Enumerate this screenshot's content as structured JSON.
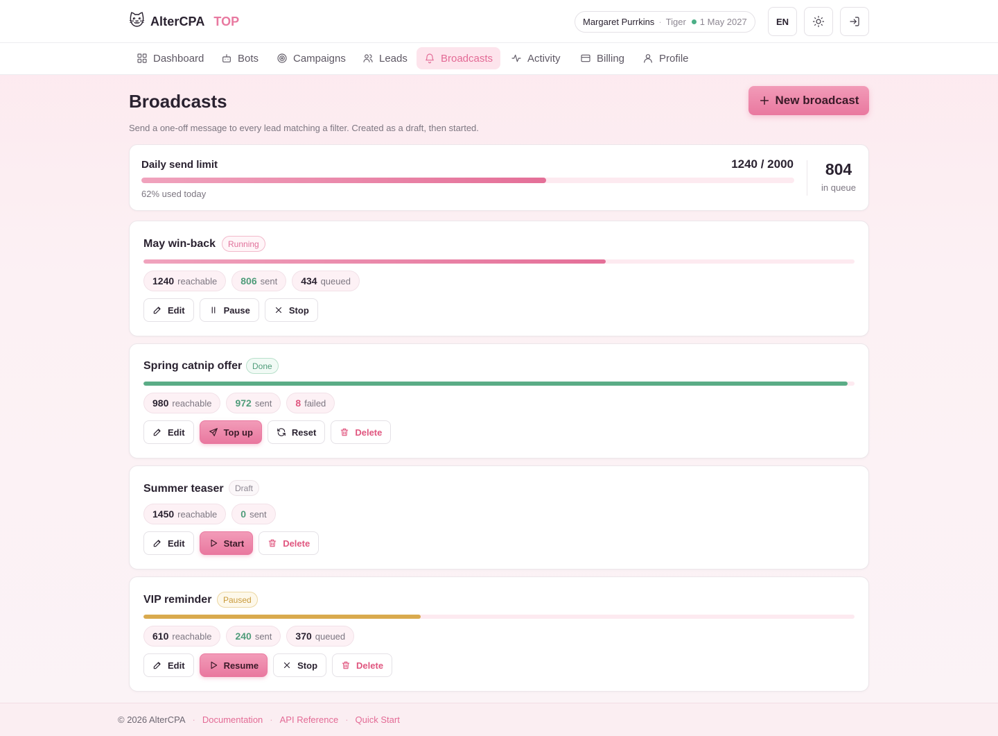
{
  "header": {
    "brand_emoji": "🐱",
    "brand_name": "AlterCPA",
    "brand_accent": "TOP",
    "user_name": "Margaret Purrkins",
    "user_role": "Tiger",
    "user_date": "1 May 2027",
    "language": "EN",
    "theme_icon": "sun-icon",
    "logout_icon": "logout-icon"
  },
  "nav": {
    "items": [
      {
        "label": "Dashboard",
        "icon": "grid-icon",
        "active": false
      },
      {
        "label": "Bots",
        "icon": "bot-icon",
        "active": false
      },
      {
        "label": "Campaigns",
        "icon": "target-icon",
        "active": false
      },
      {
        "label": "Leads",
        "icon": "users-icon",
        "active": false
      },
      {
        "label": "Broadcasts",
        "icon": "bell-icon",
        "active": true
      },
      {
        "label": "Activity",
        "icon": "pulse-icon",
        "active": false
      },
      {
        "label": "Billing",
        "icon": "card-icon",
        "active": false
      },
      {
        "label": "Profile",
        "icon": "user-icon",
        "active": false
      }
    ]
  },
  "page": {
    "title": "Broadcasts",
    "subtitle": "Send a one-off message to every lead matching a filter. Created as a draft, then started.",
    "new_button": "New broadcast"
  },
  "limit": {
    "label": "Daily send limit",
    "value": "1240 / 2000",
    "used_fraction": 0.62,
    "note": "62% used today",
    "queue_count": "804",
    "queue_label": "in queue"
  },
  "broadcasts": [
    {
      "title": "May win-back",
      "status": "Running",
      "progress": 0.65,
      "stats": [
        {
          "n": "1240",
          "label": "reachable"
        },
        {
          "n": "806",
          "label": "sent"
        },
        {
          "n": "434",
          "label": "queued"
        }
      ],
      "actions": [
        "Edit",
        "Pause",
        "Stop"
      ]
    },
    {
      "title": "Spring catnip offer",
      "status": "Done",
      "progress": 0.99,
      "stats": [
        {
          "n": "980",
          "label": "reachable"
        },
        {
          "n": "972",
          "label": "sent"
        },
        {
          "n": "8",
          "label": "failed"
        }
      ],
      "actions": [
        "Edit",
        "Top up",
        "Reset",
        "Delete"
      ]
    },
    {
      "title": "Summer teaser",
      "status": "Draft",
      "stats": [
        {
          "n": "1450",
          "label": "reachable"
        },
        {
          "n": "0",
          "label": "sent"
        }
      ],
      "actions": [
        "Edit",
        "Start",
        "Delete"
      ]
    },
    {
      "title": "VIP reminder",
      "status": "Paused",
      "progress": 0.39,
      "stats": [
        {
          "n": "610",
          "label": "reachable"
        },
        {
          "n": "240",
          "label": "sent"
        },
        {
          "n": "370",
          "label": "queued"
        }
      ],
      "actions": [
        "Edit",
        "Resume",
        "Stop",
        "Delete"
      ]
    }
  ],
  "footer": {
    "copyright": "© 2026 AlterCPA",
    "links": [
      "Documentation",
      "API Reference",
      "Quick Start"
    ]
  }
}
